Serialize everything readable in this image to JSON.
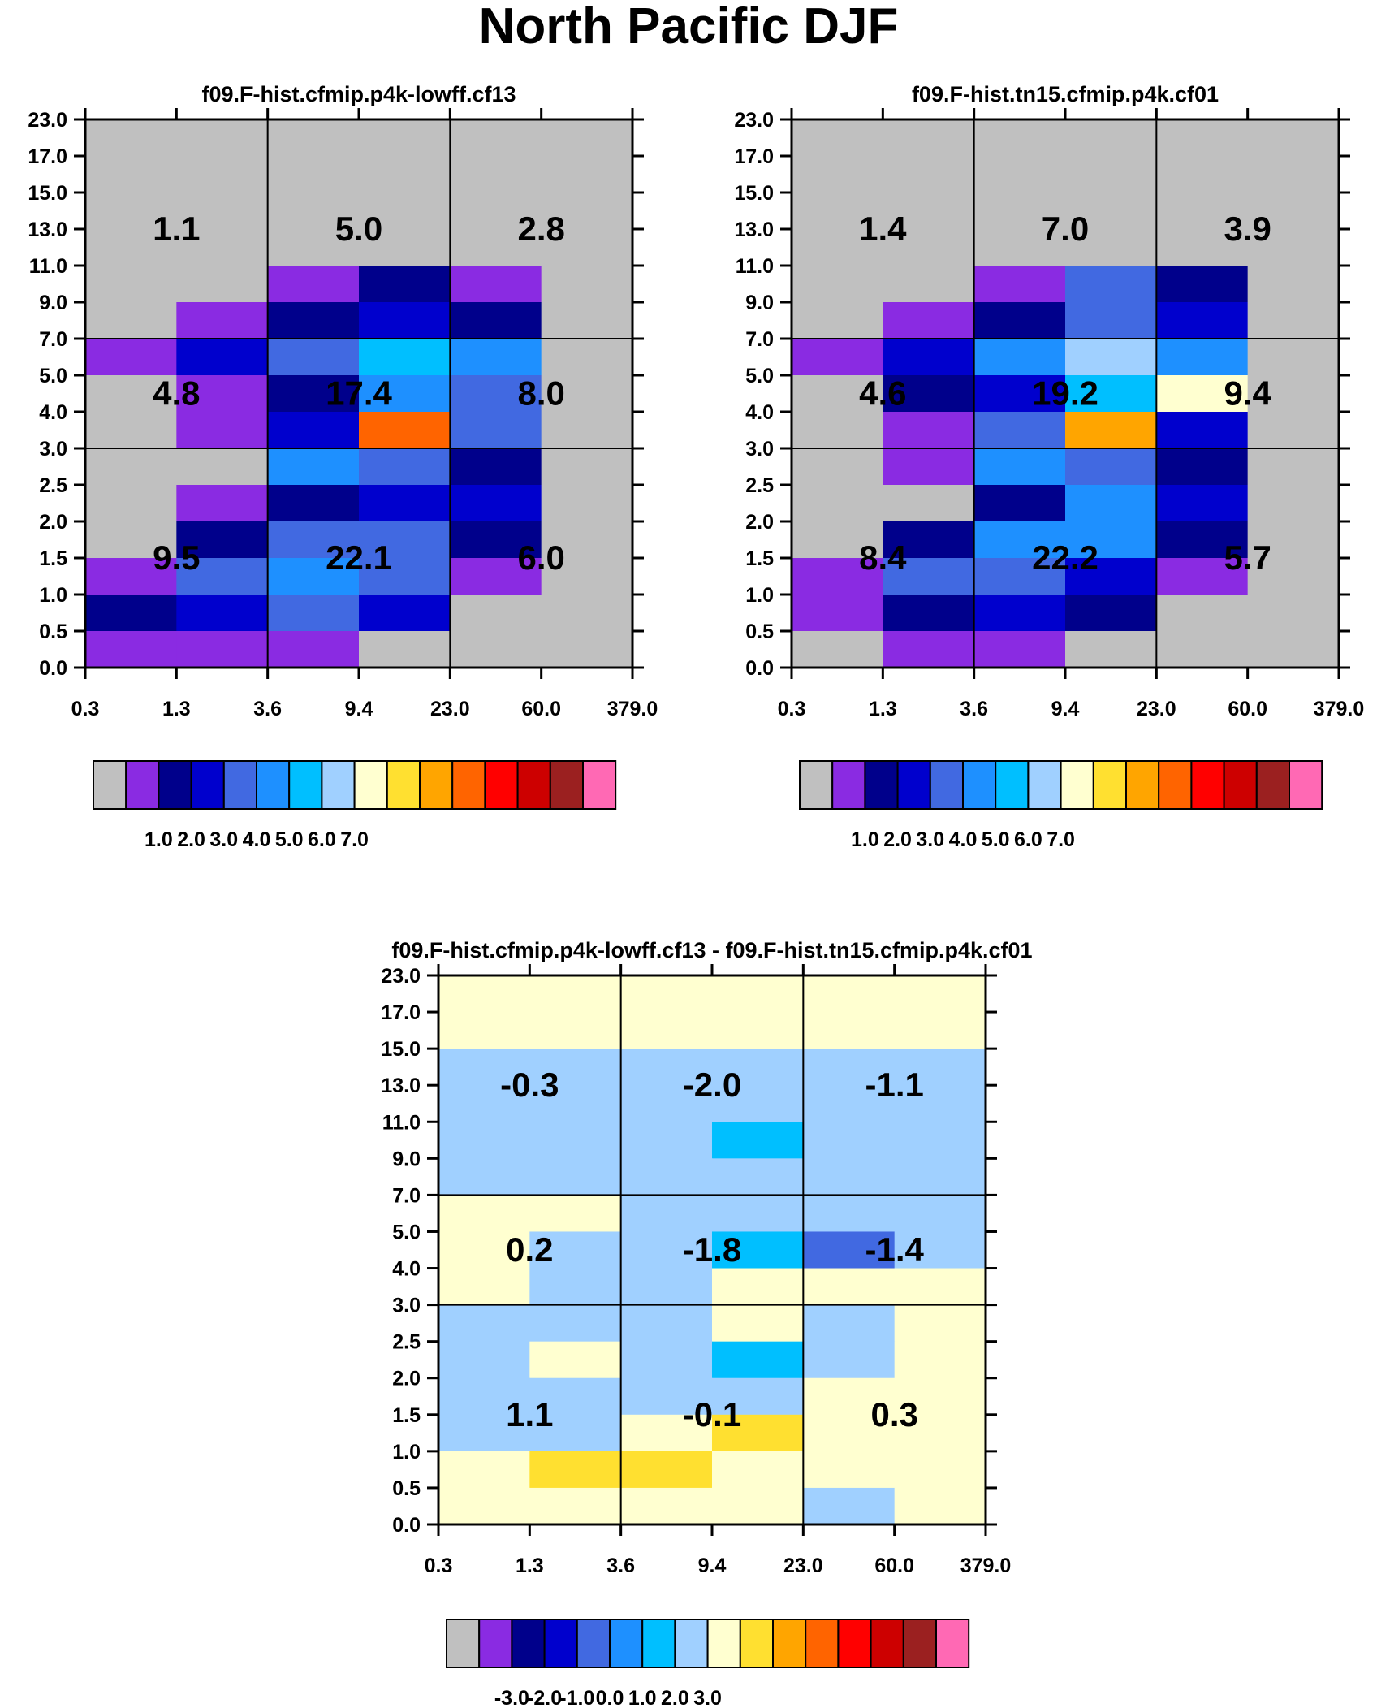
{
  "figure_title": "North Pacific DJF",
  "colormap": {
    "fill_colors": [
      "#c0c0c0",
      "#8a2be2",
      "#00008b",
      "#0000cd",
      "#4169e1",
      "#1e90ff",
      "#00bfff",
      "#a0d0ff",
      "#ffffd0",
      "#ffe030",
      "#ffa500",
      "#ff6400",
      "#ff0000",
      "#cd0000",
      "#9b2020",
      "#ff69b4"
    ],
    "abs_levels": [
      "1.0",
      "2.0",
      "3.0",
      "4.0",
      "5.0",
      "6.0",
      "7.0"
    ],
    "diff_levels": [
      "-3.0",
      "-2.0",
      "-1.0",
      "0.0",
      "1.0",
      "2.0",
      "3.0"
    ]
  },
  "axes": {
    "x_ticks": [
      "0.3",
      "1.3",
      "3.6",
      "9.4",
      "23.0",
      "60.0",
      "379.0"
    ],
    "y_ticks": [
      "0.0",
      "0.5",
      "1.0",
      "1.5",
      "2.0",
      "2.5",
      "3.0",
      "4.0",
      "5.0",
      "7.0",
      "9.0",
      "11.0",
      "13.0",
      "15.0",
      "17.0",
      "23.0"
    ]
  },
  "chart_data": [
    {
      "type": "heatmap",
      "title": "f09.F-hist.cfmip.p4k-lowff.cf13",
      "x_bins": [
        "0.3",
        "1.3",
        "3.6",
        "9.4",
        "23.0",
        "60.0",
        "379.0"
      ],
      "y_bins": [
        "0.0",
        "0.5",
        "1.0",
        "1.5",
        "2.0",
        "2.5",
        "3.0",
        "4.0",
        "5.0",
        "7.0",
        "9.0",
        "11.0",
        "13.0",
        "15.0",
        "17.0",
        "23.0"
      ],
      "cell_color_index_rows_top_to_bottom": [
        [
          0,
          0,
          0,
          0,
          0,
          0
        ],
        [
          0,
          0,
          0,
          0,
          0,
          0
        ],
        [
          0,
          0,
          0,
          0,
          0,
          0
        ],
        [
          0,
          0,
          0,
          0,
          0,
          0
        ],
        [
          0,
          0,
          1,
          2,
          1,
          0
        ],
        [
          0,
          1,
          2,
          3,
          2,
          0
        ],
        [
          1,
          3,
          4,
          6,
          5,
          0
        ],
        [
          0,
          1,
          2,
          5,
          4,
          0
        ],
        [
          0,
          1,
          3,
          11,
          4,
          0
        ],
        [
          0,
          0,
          5,
          4,
          2,
          0
        ],
        [
          0,
          1,
          2,
          3,
          3,
          0
        ],
        [
          0,
          2,
          4,
          4,
          2,
          0
        ],
        [
          1,
          4,
          5,
          4,
          1,
          0
        ],
        [
          2,
          3,
          4,
          3,
          0,
          0
        ],
        [
          1,
          1,
          1,
          0,
          0,
          0
        ]
      ],
      "sums_top_row": [
        "1.1",
        "5.0",
        "2.8"
      ],
      "sums_middle_row": [
        "4.8",
        "17.4",
        "8.0"
      ],
      "sums_bottom_row": [
        "9.5",
        "22.1",
        "6.0"
      ]
    },
    {
      "type": "heatmap",
      "title": "f09.F-hist.tn15.cfmip.p4k.cf01",
      "x_bins": [
        "0.3",
        "1.3",
        "3.6",
        "9.4",
        "23.0",
        "60.0",
        "379.0"
      ],
      "y_bins": [
        "0.0",
        "0.5",
        "1.0",
        "1.5",
        "2.0",
        "2.5",
        "3.0",
        "4.0",
        "5.0",
        "7.0",
        "9.0",
        "11.0",
        "13.0",
        "15.0",
        "17.0",
        "23.0"
      ],
      "cell_color_index_rows_top_to_bottom": [
        [
          0,
          0,
          0,
          0,
          0,
          0
        ],
        [
          0,
          0,
          0,
          0,
          0,
          0
        ],
        [
          0,
          0,
          0,
          0,
          0,
          0
        ],
        [
          0,
          0,
          0,
          0,
          0,
          0
        ],
        [
          0,
          0,
          1,
          4,
          2,
          0
        ],
        [
          0,
          1,
          2,
          4,
          3,
          0
        ],
        [
          1,
          3,
          5,
          7,
          5,
          0
        ],
        [
          0,
          2,
          3,
          6,
          8,
          0
        ],
        [
          0,
          1,
          4,
          10,
          3,
          0
        ],
        [
          0,
          1,
          5,
          4,
          2,
          0
        ],
        [
          0,
          0,
          2,
          5,
          3,
          0
        ],
        [
          0,
          2,
          5,
          5,
          2,
          0
        ],
        [
          1,
          4,
          4,
          3,
          1,
          0
        ],
        [
          1,
          2,
          3,
          2,
          0,
          0
        ],
        [
          0,
          1,
          1,
          0,
          0,
          0
        ]
      ],
      "sums_top_row": [
        "1.4",
        "7.0",
        "3.9"
      ],
      "sums_middle_row": [
        "4.6",
        "19.2",
        "9.4"
      ],
      "sums_bottom_row": [
        "8.4",
        "22.2",
        "5.7"
      ]
    },
    {
      "type": "heatmap",
      "title": "f09.F-hist.cfmip.p4k-lowff.cf13 - f09.F-hist.tn15.cfmip.p4k.cf01",
      "x_bins": [
        "0.3",
        "1.3",
        "3.6",
        "9.4",
        "23.0",
        "60.0",
        "379.0"
      ],
      "y_bins": [
        "0.0",
        "0.5",
        "1.0",
        "1.5",
        "2.0",
        "2.5",
        "3.0",
        "4.0",
        "5.0",
        "7.0",
        "9.0",
        "11.0",
        "13.0",
        "15.0",
        "17.0",
        "23.0"
      ],
      "cell_color_index_rows_top_to_bottom": [
        [
          8,
          8,
          8,
          8,
          8,
          8
        ],
        [
          8,
          8,
          8,
          8,
          8,
          8
        ],
        [
          7,
          7,
          7,
          7,
          7,
          7
        ],
        [
          7,
          7,
          7,
          7,
          7,
          7
        ],
        [
          7,
          7,
          7,
          6,
          7,
          7
        ],
        [
          7,
          7,
          7,
          7,
          7,
          7
        ],
        [
          8,
          8,
          7,
          7,
          7,
          7
        ],
        [
          8,
          7,
          7,
          6,
          4,
          7
        ],
        [
          8,
          7,
          7,
          8,
          8,
          8
        ],
        [
          7,
          7,
          7,
          8,
          7,
          8
        ],
        [
          7,
          8,
          7,
          6,
          7,
          8
        ],
        [
          7,
          7,
          7,
          7,
          8,
          8
        ],
        [
          7,
          7,
          8,
          9,
          8,
          8
        ],
        [
          8,
          9,
          9,
          8,
          8,
          8
        ],
        [
          8,
          8,
          8,
          8,
          7,
          8
        ]
      ],
      "sums_top_row": [
        "-0.3",
        "-2.0",
        "-1.1"
      ],
      "sums_middle_row": [
        "0.2",
        "-1.8",
        "-1.4"
      ],
      "sums_bottom_row": [
        "1.1",
        "-0.1",
        "0.3"
      ]
    }
  ]
}
